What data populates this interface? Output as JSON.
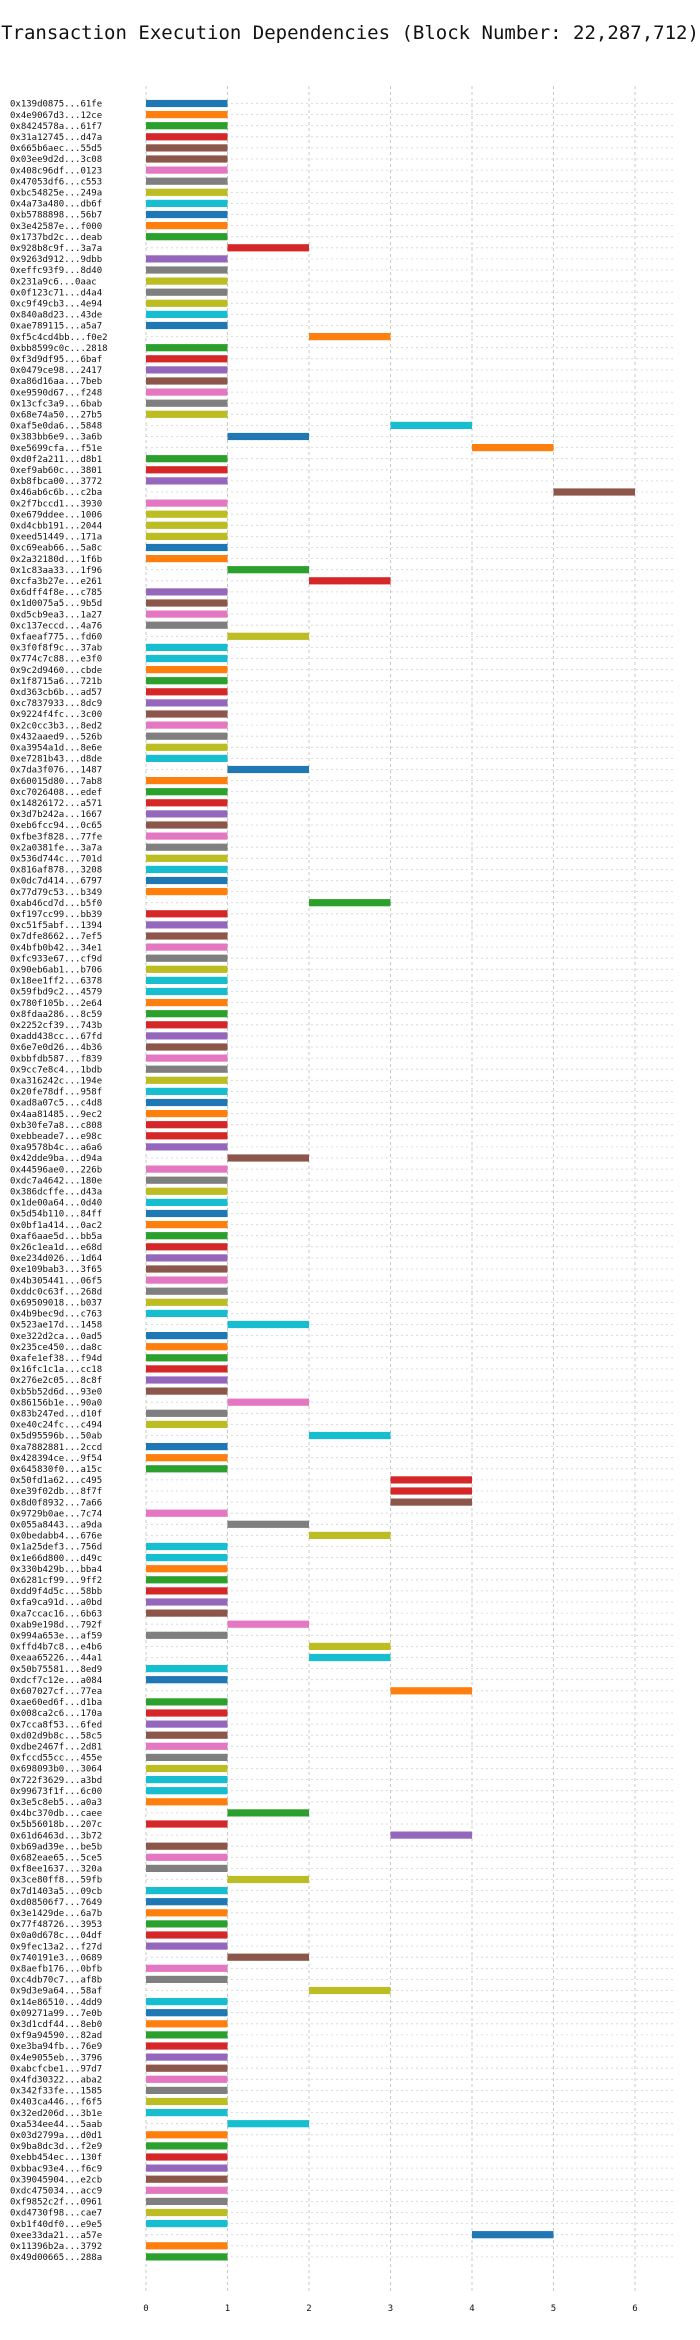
{
  "chart_data": {
    "type": "bar",
    "orientation": "horizontal-gantt",
    "title": "Transaction Execution Dependencies (Block Number: 22,287,712)",
    "xlabel": "",
    "ylabel": "",
    "xlim": [
      0,
      6.5
    ],
    "xticks": [
      "0",
      "1",
      "2",
      "3",
      "4",
      "5",
      "6"
    ],
    "grid": true,
    "palette": [
      "#1f77b4",
      "#ff7f0e",
      "#2ca02c",
      "#d62728",
      "#9467bd",
      "#8c564b",
      "#e377c2",
      "#7f7f7f",
      "#bcbd22",
      "#17becf"
    ],
    "bar_width": 1,
    "labels": [
      "0x139d0875...61fe",
      "0x4e9067d3...12ce",
      "0x8424578a...61f7",
      "0x31a12745...d47a",
      "0x665b6aec...55d5",
      "0x03ee9d2d...3c08",
      "0x408c96df...0123",
      "0x47053df6...c553",
      "0xbc54825e...249a",
      "0x4a73a480...db6f",
      "0xb5788898...56b7",
      "0x3e42587e...f000",
      "0x1737bd2c...deab",
      "0x928b8c9f...3a7a",
      "0x9263d912...9dbb",
      "0xeffc93f9...8d40",
      "0x231a9c6...0aac",
      "0x0f123c71...d4a4",
      "0xc9f49cb3...4e94",
      "0x840a8d23...43de",
      "0xae789115...a5a7",
      "0xf5c4cd4bb...f0e2",
      "0xbb8599c0c...2818",
      "0xf3d9df95...6baf",
      "0x0479ce98...2417",
      "0xa86d16aa...7beb",
      "0xe9590d67...f248",
      "0x13cfc3a9...6bab",
      "0x68e74a50...27b5",
      "0xaf5e0da6...5848",
      "0x383bb6e9...3a6b",
      "0xe5699cfa...f51e",
      "0xd0f2a211...d8b1",
      "0xef9ab60c...3801",
      "0xb8fbca00...3772",
      "0x46ab6c6b...c2ba",
      "0x2f7bccd1...3930",
      "0xe679ddee...1006",
      "0xd4cbb191...2044",
      "0xeed51449...171a",
      "0xc69eab66...5a8c",
      "0x2a32180d...1f6b",
      "0x1c83aa33...1f96",
      "0xcfa3b27e...e261",
      "0x6dff4f8e...c785",
      "0x1d0075a5...9b5d",
      "0xd5cb9ea3...1a27",
      "0xc137eccd...4a76",
      "0xfaeaf775...fd60",
      "0x3f0f8f9c...37ab",
      "0x774c7c88...e3f0",
      "0x9c2d9460...cbde",
      "0x1f8715a6...721b",
      "0xd363cb6b...ad57",
      "0xc7837933...8dc9",
      "0x9224f4fc...3c00",
      "0x2c0cc3b3...8ed2",
      "0x432aaed9...526b",
      "0xa3954a1d...8e6e",
      "0xe7281b43...d8de",
      "0x7da3f076...1487",
      "0x60015d80...7ab8",
      "0xc7026408...edef",
      "0x14826172...a571",
      "0x3d7b242a...1667",
      "0xeb6fcc94...0c65",
      "0xfbe3f828...77fe",
      "0x2a0381fe...3a7a",
      "0x536d744c...701d",
      "0x816af878...3208",
      "0x0dc7d414...6797",
      "0x77d79c53...b349",
      "0xab46cd7d...b5f0",
      "0xf197cc99...bb39",
      "0xc51f5abf...1394",
      "0x7dfe8662...7ef5",
      "0x4bfb0b42...34e1",
      "0xfc933e67...cf9d",
      "0x90eb6ab1...b706",
      "0x18ee1ff2...6378",
      "0x59fbd9c2...4579",
      "0x780f105b...2e64",
      "0x8fdaa286...8c59",
      "0x2252cf39...743b",
      "0xadd438cc...67fd",
      "0x6e7e0d26...4b36",
      "0xbbfdb587...f839",
      "0x9cc7e8c4...1bdb",
      "0xa316242c...194e",
      "0x20fe78df...958f",
      "0xad8a07c5...c4d8",
      "0x4aa81485...9ec2",
      "0xb30fe7a8...c808",
      "0xebbeade7...e98c",
      "0xa9578b4c...a6a6",
      "0x42dde9ba...d94a",
      "0x44596ae0...226b",
      "0xdc7a4642...180e",
      "0x386dcffe...d43a",
      "0x1de00a64...0d40",
      "0x5d54b110...84ff",
      "0x0bf1a414...0ac2",
      "0xaf6aae5d...bb5a",
      "0x26c1ea1d...e68d",
      "0xe234d026...1d64",
      "0xe109bab3...3f65",
      "0x4b305441...06f5",
      "0xddc0c63f...268d",
      "0x69509018...b037",
      "0x4b9bec9d...c763",
      "0x523ae17d...1458",
      "0xe322d2ca...0ad5",
      "0x235ce450...da8c",
      "0xafe1ef38...f94d",
      "0x16fc1c1a...cc18",
      "0x276e2c05...8c8f",
      "0xb5b52d6d...93e0",
      "0x86156b1e...90a0",
      "0x83b247ed...d10f",
      "0xe40c24fc...c494",
      "0x5d95596b...50ab",
      "0xa7882881...2ccd",
      "0x428394ce...9f54",
      "0x645830f0...a15c",
      "0x50fd1a62...c495",
      "0xe39f02db...8f7f",
      "0x8d0f8932...7a66",
      "0x9729b0ae...7c74",
      "0x055a8443...a9da",
      "0x0bedabb4...676e",
      "0x1a25def3...756d",
      "0x1e66d800...d49c",
      "0x330b429b...bba4",
      "0x6281cf99...9ff2",
      "0xdd9f4d5c...58bb",
      "0xfa9ca91d...a0bd",
      "0xa7ccac16...6b63",
      "0xab9e198d...792f",
      "0x994a653e...af59",
      "0xffd4b7c8...e4b6",
      "0xeaa65226...44a1",
      "0x50b75581...8ed9",
      "0xdcf7c12e...a084",
      "0x607027cf...77ea",
      "0xae60ed6f...d1ba",
      "0x008ca2c6...170a",
      "0x7cca8f53...6fed",
      "0xd02d9b8c...58c5",
      "0xdbe2467f...2d81",
      "0xfccd55cc...455e",
      "0x698093b0...3064",
      "0x722f3629...a3bd",
      "0x99673f1f...6c00",
      "0x3e5c8eb5...a0a3",
      "0x4bc370db...caee",
      "0x5b56018b...207c",
      "0x61d6463d...3b72",
      "0xb69ad39e...be5b",
      "0x682eae65...5ce5",
      "0xf8ee1637...320a",
      "0x3ce80ff8...59fb",
      "0x7d1403a5...09cb",
      "0xd08506f7...7649",
      "0x3e1429de...6a7b",
      "0x77f48726...3953",
      "0x0a0d678c...04df",
      "0x9fec13a2...f27d",
      "0x740191e3...0689",
      "0x8aefb176...0bfb",
      "0xc4db70c7...af8b",
      "0x9d3e9a64...58af",
      "0x14e86510...4dd9",
      "0x09271a99...7e0b",
      "0x3d1cdf44...8eb0",
      "0xf9a94590...82ad",
      "0xe3ba94fb...76e9",
      "0x4e9055eb...3796",
      "0xabcfcbe1...97d7",
      "0x4fd30322...aba2",
      "0x342f33fe...1585",
      "0x403ca446...f6f5",
      "0x32ed206d...3b1e",
      "0xa534ee44...5aab",
      "0x03d2799a...d0d1",
      "0x9ba8dc3d...f2e9",
      "0xebb454ec...130f",
      "0xbbac93e4...f6c9",
      "0x39045904...e2cb",
      "0xdc475034...acc9",
      "0xf9852c2f...0961",
      "0xd4730f98...cae7",
      "0xb1f40df0...e9e5",
      "0xee33da21...a57e",
      "0x11396b2a...3792",
      "0x49d00665...288a"
    ],
    "starts": [
      0,
      0,
      0,
      0,
      0,
      0,
      0,
      0,
      0,
      0,
      0,
      0,
      0,
      1,
      0,
      0,
      0,
      0,
      0,
      0,
      0,
      2,
      0,
      0,
      0,
      0,
      0,
      0,
      0,
      3,
      1,
      4,
      0,
      0,
      0,
      5,
      0,
      0,
      0,
      0,
      0,
      0,
      1,
      2,
      0,
      0,
      0,
      0,
      1,
      0,
      0,
      0,
      0,
      0,
      0,
      0,
      0,
      0,
      0,
      0,
      1,
      0,
      0,
      0,
      0,
      0,
      0,
      0,
      0,
      0,
      0,
      0,
      2,
      0,
      0,
      0,
      0,
      0,
      0,
      0,
      0,
      0,
      0,
      0,
      0,
      0,
      0,
      0,
      0,
      0,
      0,
      0,
      0,
      0,
      0,
      1,
      0,
      0,
      0,
      0,
      0,
      0,
      0,
      0,
      0,
      0,
      0,
      0,
      0,
      0,
      1,
      0,
      0,
      0,
      0,
      0,
      0,
      1,
      0,
      0,
      2,
      0,
      0,
      0,
      3,
      3,
      3,
      0,
      1,
      2,
      0,
      0,
      0,
      0,
      0,
      0,
      0,
      1,
      0,
      2,
      2,
      0,
      0,
      3,
      0,
      0,
      0,
      0,
      0,
      0,
      0,
      0,
      0,
      0,
      1,
      0,
      3,
      0,
      0,
      0,
      1,
      0,
      0,
      0,
      0,
      0,
      0,
      1,
      0,
      0,
      2,
      0,
      0,
      0,
      0,
      0,
      0,
      0,
      0,
      0,
      0,
      0,
      1,
      0,
      0,
      0,
      0,
      0,
      0,
      0,
      0,
      0,
      4,
      0,
      0,
      0
    ],
    "colors": [
      0,
      1,
      2,
      3,
      5,
      5,
      6,
      7,
      8,
      9,
      0,
      1,
      2,
      3,
      4,
      7,
      8,
      7,
      8,
      9,
      0,
      1,
      2,
      3,
      4,
      5,
      6,
      7,
      8,
      9,
      0,
      1,
      2,
      3,
      4,
      5,
      6,
      8,
      8,
      8,
      0,
      1,
      2,
      3,
      4,
      5,
      6,
      7,
      8,
      9,
      9,
      1,
      2,
      3,
      4,
      5,
      6,
      7,
      8,
      9,
      0,
      1,
      2,
      3,
      4,
      5,
      6,
      7,
      8,
      9,
      0,
      1,
      2,
      3,
      4,
      5,
      6,
      7,
      8,
      9,
      9,
      1,
      2,
      3,
      4,
      5,
      6,
      7,
      8,
      9,
      0,
      1,
      3,
      3,
      4,
      5,
      6,
      7,
      8,
      9,
      0,
      1,
      2,
      3,
      4,
      5,
      6,
      7,
      8,
      9,
      9,
      0,
      1,
      2,
      3,
      4,
      5,
      6,
      7,
      8,
      9,
      0,
      1,
      2,
      3,
      3,
      5,
      6,
      7,
      8,
      9,
      9,
      1,
      2,
      3,
      4,
      5,
      6,
      7,
      8,
      9,
      9,
      0,
      1,
      2,
      3,
      4,
      5,
      6,
      7,
      8,
      9,
      9,
      1,
      2,
      3,
      4,
      5,
      6,
      7,
      8,
      9,
      0,
      1,
      2,
      3,
      4,
      5,
      6,
      7,
      8,
      9,
      0,
      1,
      2,
      3,
      4,
      5,
      6,
      7,
      8,
      9,
      9,
      1,
      2,
      3,
      4,
      5,
      6,
      7,
      8,
      9,
      0,
      1,
      2,
      3,
      4
    ]
  }
}
